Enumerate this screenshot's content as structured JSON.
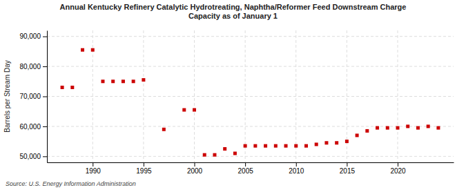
{
  "chart_data": {
    "type": "scatter",
    "title": "Annual Kentucky Refinery Catalytic Hydrotreating, Naphtha/Reformer Feed Downstream Charge\nCapacity as of January 1",
    "ylabel": "Barrels per Stream Day",
    "annotations": [
      "Source: U.S. Energy Information Administration"
    ],
    "x": [
      1987,
      1988,
      1989,
      1990,
      1991,
      1992,
      1993,
      1994,
      1995,
      1997,
      1999,
      2000,
      2001,
      2002,
      2003,
      2004,
      2005,
      2006,
      2007,
      2008,
      2009,
      2010,
      2011,
      2012,
      2013,
      2014,
      2015,
      2016,
      2017,
      2018,
      2019,
      2020,
      2021,
      2022,
      2023,
      2024
    ],
    "values": [
      73000,
      73000,
      85500,
      85500,
      75000,
      75000,
      75000,
      75000,
      75500,
      59000,
      65500,
      65500,
      50500,
      50500,
      52500,
      51000,
      53500,
      53500,
      53500,
      53500,
      53500,
      53500,
      53500,
      54000,
      54500,
      54500,
      55000,
      57000,
      58500,
      59500,
      59500,
      59500,
      60000,
      59500,
      60000,
      59500
    ],
    "color": "#cc0000",
    "marker": "square",
    "grid": true,
    "xlim": [
      1985.5,
      2025.5
    ],
    "xticks": [
      1990,
      1995,
      2000,
      2005,
      2010,
      2015,
      2020
    ],
    "ylim": [
      48000,
      92000
    ],
    "yticks": [
      {
        "value": 50000,
        "label": "50,000"
      },
      {
        "value": 60000,
        "label": "60,000"
      },
      {
        "value": 70000,
        "label": "70,000"
      },
      {
        "value": 80000,
        "label": "80,000"
      },
      {
        "value": 90000,
        "label": "90,000"
      }
    ]
  }
}
